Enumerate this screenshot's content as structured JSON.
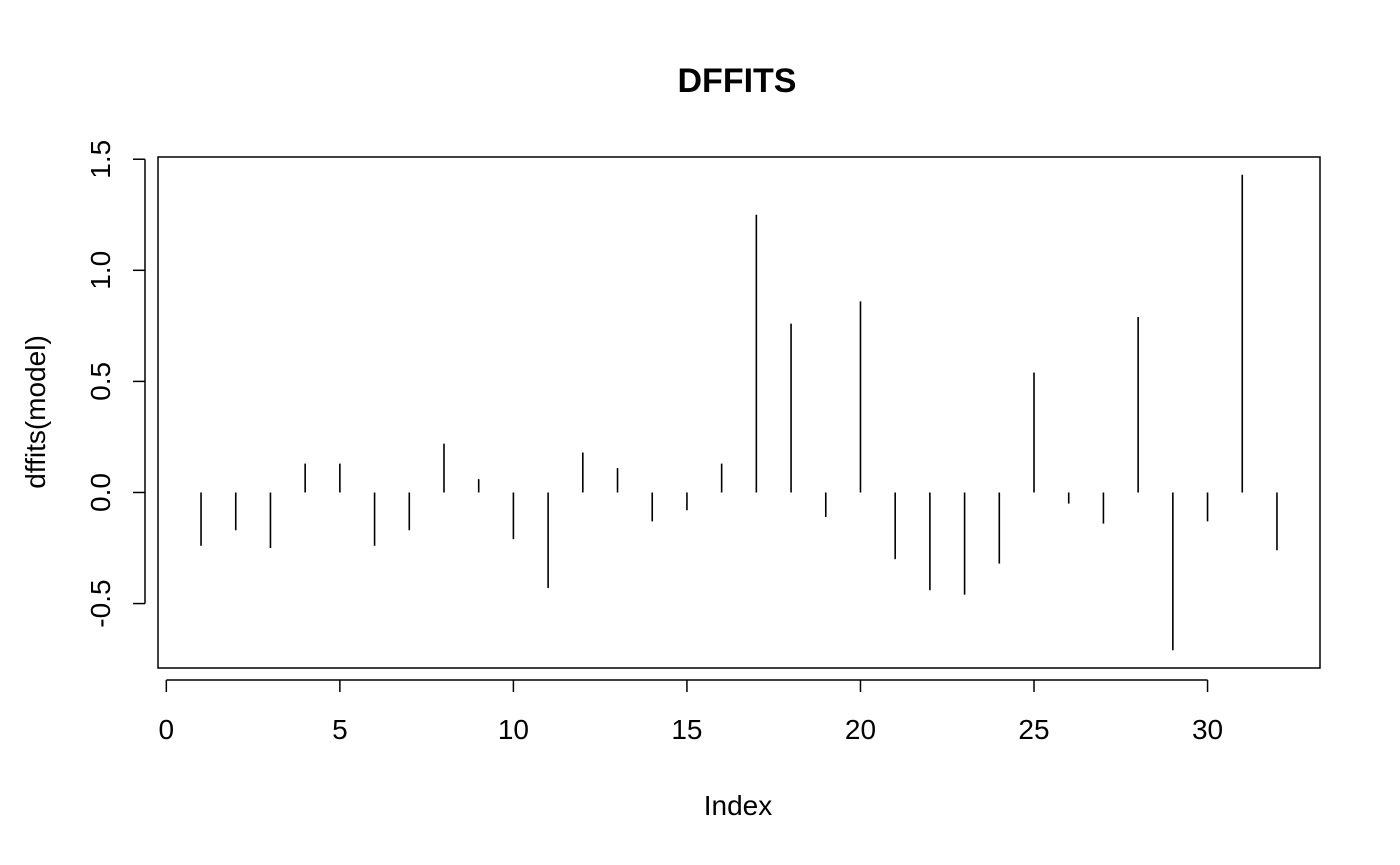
{
  "chart_data": {
    "type": "stem",
    "title": "DFFITS",
    "x_label": "Index",
    "y_label": "dffits(model)",
    "x": [
      1,
      2,
      3,
      4,
      5,
      6,
      7,
      8,
      9,
      10,
      11,
      12,
      13,
      14,
      15,
      16,
      17,
      18,
      19,
      20,
      21,
      22,
      23,
      24,
      25,
      26,
      27,
      28,
      29,
      30,
      31,
      32
    ],
    "values": [
      -0.24,
      -0.17,
      -0.25,
      0.13,
      0.13,
      -0.24,
      -0.17,
      0.22,
      0.06,
      -0.21,
      -0.43,
      0.18,
      0.11,
      -0.13,
      -0.08,
      0.13,
      1.25,
      0.76,
      -0.11,
      0.86,
      -0.3,
      -0.44,
      -0.46,
      -0.32,
      0.54,
      -0.05,
      -0.14,
      0.79,
      -0.71,
      -0.13,
      1.43,
      -0.26
    ],
    "color": "#000000",
    "xlim": [
      -0.24,
      33.24
    ],
    "xticks": [
      0,
      5,
      10,
      15,
      20,
      25,
      30
    ],
    "ylim": [
      -0.79,
      1.51
    ],
    "yticks": [
      -0.5,
      {
        "value": 0,
        "label": "0.0"
      },
      0.5,
      {
        "value": 1,
        "label": "1.0"
      },
      1.5
    ]
  }
}
